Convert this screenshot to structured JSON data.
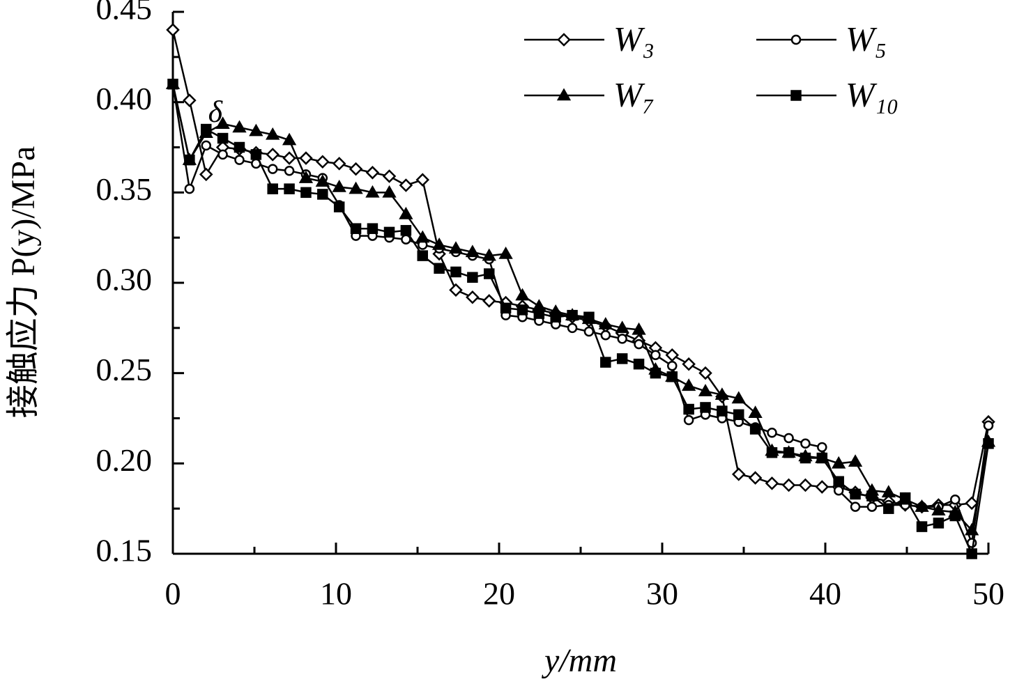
{
  "chart_data": {
    "type": "line",
    "xlabel": "y/mm",
    "ylabel": "接触应力 P(y)/MPa",
    "annotation": "δ",
    "x": [
      0,
      1.02,
      2.04,
      3.06,
      4.08,
      5.1,
      6.12,
      7.14,
      8.16,
      9.18,
      10.2,
      11.22,
      12.24,
      13.27,
      14.29,
      15.31,
      16.33,
      17.35,
      18.37,
      19.39,
      20.41,
      21.43,
      22.45,
      23.47,
      24.49,
      25.51,
      26.53,
      27.55,
      28.57,
      29.59,
      30.61,
      31.63,
      32.65,
      33.67,
      34.69,
      35.71,
      36.73,
      37.76,
      38.78,
      39.8,
      40.82,
      41.84,
      42.86,
      43.88,
      44.9,
      45.92,
      46.94,
      47.96,
      48.98,
      50
    ],
    "series": [
      {
        "name": "W₃",
        "color": "#000000",
        "marker": "diamond",
        "marker_fill": "#ffffff",
        "values": [
          0.44,
          0.401,
          0.36,
          0.375,
          0.374,
          0.372,
          0.371,
          0.369,
          0.369,
          0.367,
          0.366,
          0.363,
          0.361,
          0.359,
          0.354,
          0.357,
          0.316,
          0.296,
          0.292,
          0.29,
          0.289,
          0.287,
          0.285,
          0.283,
          0.281,
          0.279,
          0.276,
          0.272,
          0.268,
          0.264,
          0.26,
          0.255,
          0.25,
          0.237,
          0.194,
          0.192,
          0.189,
          0.188,
          0.188,
          0.187,
          0.187,
          0.184,
          0.181,
          0.179,
          0.177,
          0.176,
          0.177,
          0.177,
          0.178,
          0.223
        ]
      },
      {
        "name": "W₅",
        "color": "#000000",
        "marker": "circle",
        "marker_fill": "#ffffff",
        "values": [
          0.41,
          0.352,
          0.376,
          0.371,
          0.368,
          0.366,
          0.363,
          0.362,
          0.36,
          0.358,
          0.343,
          0.326,
          0.326,
          0.325,
          0.324,
          0.321,
          0.319,
          0.317,
          0.315,
          0.313,
          0.282,
          0.281,
          0.279,
          0.277,
          0.275,
          0.273,
          0.271,
          0.269,
          0.266,
          0.26,
          0.254,
          0.224,
          0.227,
          0.225,
          0.223,
          0.22,
          0.217,
          0.214,
          0.211,
          0.209,
          0.185,
          0.176,
          0.176,
          0.177,
          0.177,
          0.176,
          0.176,
          0.18,
          0.156,
          0.221
        ]
      },
      {
        "name": "W₇",
        "color": "#000000",
        "marker": "triangle",
        "marker_fill": "#000000",
        "values": [
          0.41,
          0.368,
          0.383,
          0.388,
          0.386,
          0.384,
          0.382,
          0.379,
          0.358,
          0.356,
          0.353,
          0.352,
          0.35,
          0.35,
          0.338,
          0.325,
          0.321,
          0.319,
          0.317,
          0.315,
          0.316,
          0.293,
          0.287,
          0.284,
          0.282,
          0.28,
          0.277,
          0.275,
          0.274,
          0.252,
          0.248,
          0.243,
          0.24,
          0.238,
          0.236,
          0.228,
          0.207,
          0.206,
          0.204,
          0.203,
          0.2,
          0.201,
          0.185,
          0.184,
          0.18,
          0.176,
          0.174,
          0.173,
          0.163,
          0.212
        ]
      },
      {
        "name": "W₁₀",
        "color": "#000000",
        "marker": "square",
        "marker_fill": "#000000",
        "values": [
          0.41,
          0.368,
          0.385,
          0.38,
          0.375,
          0.371,
          0.352,
          0.352,
          0.35,
          0.349,
          0.342,
          0.33,
          0.33,
          0.328,
          0.329,
          0.315,
          0.308,
          0.306,
          0.303,
          0.305,
          0.286,
          0.285,
          0.283,
          0.281,
          0.282,
          0.281,
          0.256,
          0.258,
          0.255,
          0.25,
          0.248,
          0.23,
          0.231,
          0.229,
          0.227,
          0.219,
          0.206,
          0.206,
          0.203,
          0.203,
          0.19,
          0.183,
          0.182,
          0.175,
          0.181,
          0.165,
          0.167,
          0.171,
          0.15,
          0.211
        ]
      }
    ],
    "xlim": [
      0,
      50
    ],
    "xticks": [
      0,
      10,
      20,
      30,
      40,
      50
    ],
    "xminorticks": [
      5,
      15,
      25,
      35,
      45
    ],
    "ylim": [
      0.15,
      0.45
    ],
    "yticks": [
      0.15,
      {
        "value": 0.2,
        "label": "0.20"
      },
      0.25,
      {
        "value": 0.3,
        "label": "0.30"
      },
      0.35,
      {
        "value": 0.4,
        "label": "0.40"
      },
      0.45
    ],
    "yminorticks": [
      0.175,
      0.225,
      0.275,
      0.325,
      0.375,
      0.425
    ],
    "grid": false
  }
}
